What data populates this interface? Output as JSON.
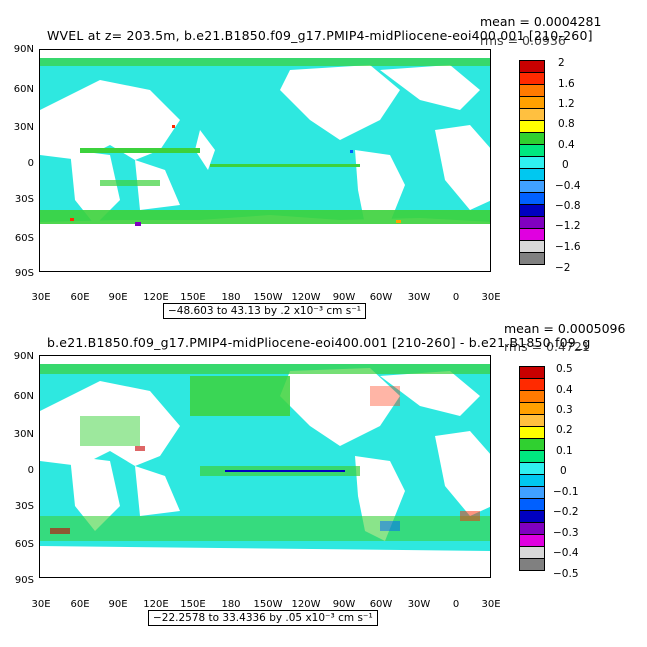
{
  "panel1": {
    "title": "WVEL at z= 203.5m, b.e21.B1850.f09_g17.PMIP4-midPliocene-eoi400.001 [210-260]",
    "mean": "mean = 0.0004281",
    "rms": "rms = 0.0936",
    "range": "−48.603 to 43.13 by .2 x10⁻³ cm s⁻¹",
    "lat_labels": [
      "90N",
      "60N",
      "30N",
      "0",
      "30S",
      "60S",
      "90S"
    ],
    "lon_labels": [
      "30E",
      "60E",
      "90E",
      "120E",
      "150E",
      "180",
      "150W",
      "120W",
      "90W",
      "60W",
      "30W",
      "0",
      "30E"
    ],
    "colorbar": {
      "labels": [
        "2",
        "1.6",
        "1.2",
        "0.8",
        "0.4",
        "0",
        "−0.4",
        "−0.8",
        "−1.2",
        "−1.6",
        "−2"
      ],
      "colors": [
        "#c80000",
        "#ff2a00",
        "#ff7a00",
        "#ffa000",
        "#ffc040",
        "#ffff00",
        "#30d030",
        "#00e880",
        "#30f0f0",
        "#00c8f0",
        "#40a0ff",
        "#0060ff",
        "#0000c0",
        "#8000c0",
        "#e000e0",
        "#d8d8d8",
        "#808080"
      ]
    }
  },
  "panel2": {
    "title": "b.e21.B1850.f09_g17.PMIP4-midPliocene-eoi400.001 [210-260] - b.e21.B1850.f09_g",
    "mean": "mean = 0.0005096",
    "rms": "rms = 0.4721",
    "range": "−22.2578 to 33.4336 by .05 x10⁻³ cm s⁻¹",
    "lat_labels": [
      "90N",
      "60N",
      "30N",
      "0",
      "30S",
      "60S",
      "90S"
    ],
    "lon_labels": [
      "30E",
      "60E",
      "90E",
      "120E",
      "150E",
      "180",
      "150W",
      "120W",
      "90W",
      "60W",
      "30W",
      "0",
      "30E"
    ],
    "colorbar": {
      "labels": [
        "0.5",
        "0.4",
        "0.3",
        "0.2",
        "0.1",
        "0",
        "−0.1",
        "−0.2",
        "−0.3",
        "−0.4",
        "−0.5"
      ],
      "colors": [
        "#c80000",
        "#ff2a00",
        "#ff7a00",
        "#ffa000",
        "#ffc040",
        "#ffff00",
        "#30d030",
        "#00e880",
        "#30f0f0",
        "#00c8f0",
        "#40a0ff",
        "#0060ff",
        "#0000c0",
        "#8000c0",
        "#e000e0",
        "#d8d8d8",
        "#808080"
      ]
    }
  },
  "colors": {
    "ocean": "#2ee8e0",
    "land": "#ffffff",
    "band": "#3cd23c"
  }
}
